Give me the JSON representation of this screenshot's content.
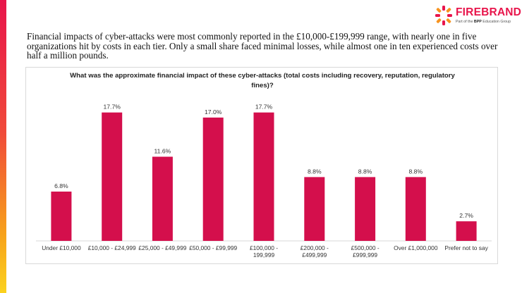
{
  "brand": {
    "name": "FIREBRAND",
    "tagline_prefix": "Part of the ",
    "tagline_bold": "BPP",
    "tagline_suffix": " Education Group",
    "accent_color": "#e8154b"
  },
  "summary_text": "Financial impacts of cyber-attacks were most commonly reported in the £10,000-£199,999 range, with nearly one in five organizations hit by costs in each tier. Only a small share faced minimal losses, while almost one in ten experienced costs over half a million pounds.",
  "chart_data": {
    "type": "bar",
    "title": "What was the approximate financial impact of these cyber-attacks (total costs including recovery, reputation, regulatory fines)?",
    "categories": [
      [
        "Under £10,000"
      ],
      [
        "£10,000 - £24,999"
      ],
      [
        "£25,000 - £49,999"
      ],
      [
        "£50,000 - £99,999"
      ],
      [
        "£100,000 -",
        "199,999"
      ],
      [
        "£200,000 -",
        "£499,999"
      ],
      [
        "£500,000 -",
        "£999,999"
      ],
      [
        "Over £1,000,000"
      ],
      [
        "Prefer not to say"
      ]
    ],
    "values": [
      6.8,
      17.7,
      11.6,
      17.0,
      17.7,
      8.8,
      8.8,
      8.8,
      2.7
    ],
    "value_labels": [
      "6.8%",
      "17.7%",
      "11.6%",
      "17.0%",
      "17.7%",
      "8.8%",
      "8.8%",
      "8.8%",
      "2.7%"
    ],
    "bar_color": "#d40f4c",
    "xlabel": "",
    "ylabel": "",
    "ylim": [
      0,
      20
    ],
    "grid": false,
    "legend": "none"
  }
}
